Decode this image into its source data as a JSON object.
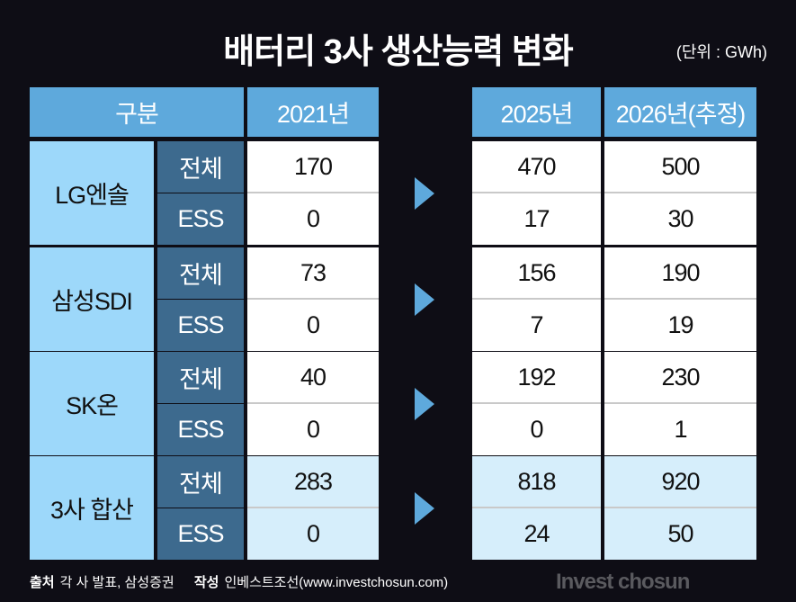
{
  "title": "배터리 3사 생산능력 변화",
  "unit": "(단위 : GWh)",
  "headers": {
    "category": "구분",
    "y2021": "2021년",
    "y2025": "2025년",
    "y2026": "2026년(추정)"
  },
  "chart_data": {
    "type": "table",
    "columns": [
      "구분",
      "",
      "2021년",
      "2025년",
      "2026년(추정)"
    ],
    "groups": [
      {
        "company": "LG엔솔",
        "rows": [
          {
            "label": "전체",
            "values": [
              "170",
              "470",
              "500"
            ]
          },
          {
            "label": "ESS",
            "values": [
              "0",
              "17",
              "30"
            ]
          }
        ]
      },
      {
        "company": "삼성SDI",
        "rows": [
          {
            "label": "전체",
            "values": [
              "73",
              "156",
              "190"
            ]
          },
          {
            "label": "ESS",
            "values": [
              "0",
              "7",
              "19"
            ]
          }
        ]
      },
      {
        "company": "SK온",
        "rows": [
          {
            "label": "전체",
            "values": [
              "40",
              "192",
              "230"
            ]
          },
          {
            "label": "ESS",
            "values": [
              "0",
              "0",
              "1"
            ]
          }
        ]
      },
      {
        "company": "3사 합산",
        "rows": [
          {
            "label": "전체",
            "values": [
              "283",
              "818",
              "920"
            ]
          },
          {
            "label": "ESS",
            "values": [
              "0",
              "24",
              "50"
            ]
          }
        ]
      }
    ]
  },
  "footer": {
    "source_label": "출처",
    "source": "각 사 발표, 삼성증권",
    "author_label": "작성",
    "author": "인베스트조선(www.investchosun.com)"
  },
  "brand": "Invest chosun",
  "colors": {
    "background": "#0e0d15",
    "header": "#5ea9dc",
    "company": "#9dd8fa",
    "sub": "#3d6a8e",
    "total": "#d6eefb"
  }
}
